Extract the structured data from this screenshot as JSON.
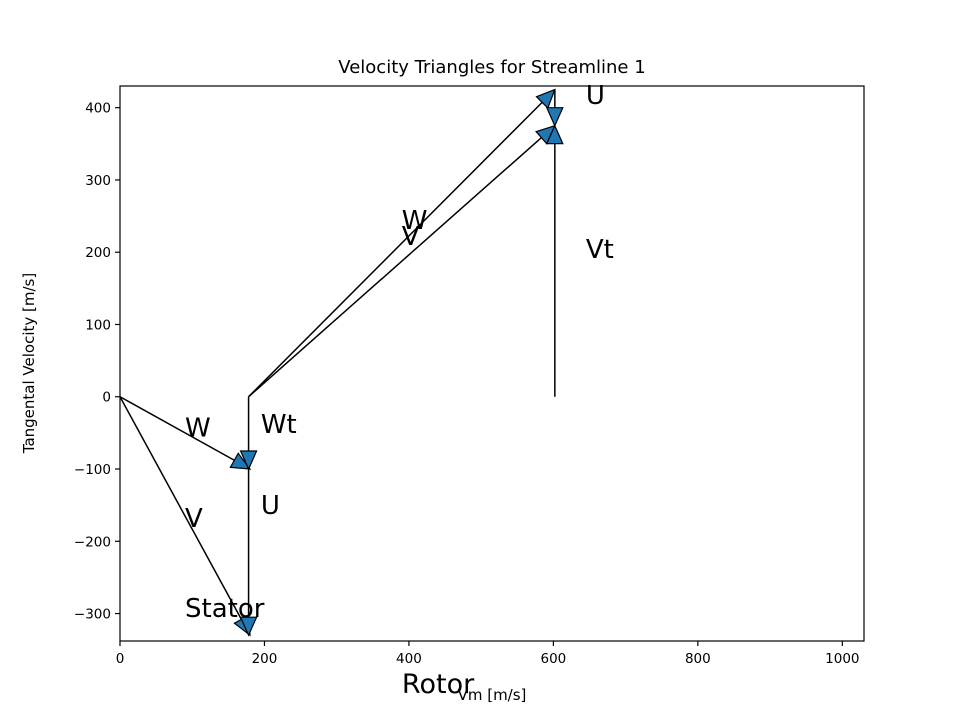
{
  "chart_data": {
    "type": "line",
    "title": "Velocity Triangles for Streamline 1",
    "xlabel": "Vm [m/s]",
    "ylabel": "Tangental Velocity [m/s]",
    "xlim": [
      0,
      1030
    ],
    "ylim": [
      -338,
      430
    ],
    "xticks": [
      0,
      200,
      400,
      600,
      800,
      1000
    ],
    "yticks": [
      -300,
      -200,
      -100,
      0,
      100,
      200,
      300,
      400
    ],
    "xtick_labels": [
      "0",
      "200",
      "400",
      "600",
      "800",
      "1000"
    ],
    "ytick_labels": [
      "−300",
      "−200",
      "−100",
      "0",
      "100",
      "200",
      "300",
      "400"
    ],
    "grid": false,
    "head_color": "#1f77b4",
    "vectors": [
      {
        "name": "stator-V",
        "x0": 0,
        "y0": 0,
        "x1": 180,
        "y1": -330
      },
      {
        "name": "stator-W",
        "x0": 0,
        "y0": 0,
        "x1": 180,
        "y1": -100
      },
      {
        "name": "stator-U",
        "x0": 178,
        "y0": -100,
        "x1": 178,
        "y1": -330
      },
      {
        "name": "stator-Wt",
        "x0": 178,
        "y0": 0,
        "x1": 178,
        "y1": -100
      },
      {
        "name": "rotor-W",
        "x0": 178,
        "y0": 0,
        "x1": 602,
        "y1": 425
      },
      {
        "name": "rotor-V",
        "x0": 178,
        "y0": 0,
        "x1": 602,
        "y1": 375
      },
      {
        "name": "rotor-Vt",
        "x0": 602,
        "y0": 0,
        "x1": 602,
        "y1": 375
      },
      {
        "name": "rotor-U",
        "x0": 602,
        "y0": 425,
        "x1": 602,
        "y1": 375
      }
    ],
    "annotations": [
      {
        "text": "W",
        "x": 90,
        "y": -55
      },
      {
        "text": "V",
        "x": 90,
        "y": -180
      },
      {
        "text": "Wt",
        "x": 195,
        "y": -50
      },
      {
        "text": "U",
        "x": 195,
        "y": -162
      },
      {
        "text": "Stator",
        "x": 90,
        "y": -305
      },
      {
        "text": "W",
        "x": 390,
        "y": 232
      },
      {
        "text": "V",
        "x": 390,
        "y": 210
      },
      {
        "text": "Vt",
        "x": 645,
        "y": 192
      },
      {
        "text": "U",
        "x": 645,
        "y": 405
      }
    ],
    "below_labels": [
      {
        "text": "Rotor",
        "x": 400
      }
    ]
  }
}
